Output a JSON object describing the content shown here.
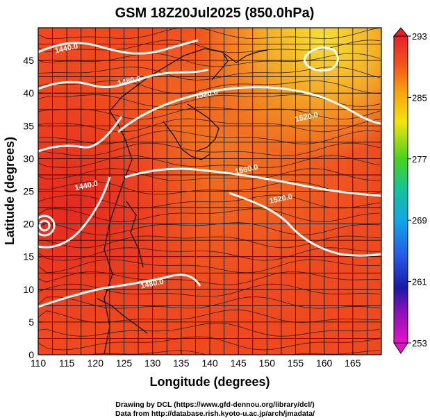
{
  "title": "GSM 18Z20Jul2025 (850.0hPa)",
  "chart_data": {
    "type": "heatmap",
    "title": "GSM 18Z20Jul2025 (850.0hPa)",
    "xlabel": "Longitude (degrees)",
    "ylabel": "Latitude  (degrees)",
    "xlim": [
      110,
      170
    ],
    "ylim": [
      0,
      50
    ],
    "xticks": [
      "110",
      "115",
      "120",
      "125",
      "130",
      "135",
      "140",
      "145",
      "150",
      "155",
      "160",
      "165"
    ],
    "yticks": [
      "0",
      "5",
      "10",
      "15",
      "20",
      "25",
      "30",
      "35",
      "40",
      "45"
    ],
    "colorbar": {
      "min": 253,
      "max": 293,
      "ticks": [
        "293",
        "285",
        "277",
        "269",
        "261",
        "253"
      ]
    },
    "contours": [
      {
        "label": "1440.0",
        "lon": 115.0,
        "lat": 46.5
      },
      {
        "label": "1480.0",
        "lon": 126.0,
        "lat": 41.5
      },
      {
        "label": "1520.0",
        "lon": 139.5,
        "lat": 39.5
      },
      {
        "label": "1520.0",
        "lon": 157.0,
        "lat": 36.0
      },
      {
        "label": "1560.0",
        "lon": 146.5,
        "lat": 28.0
      },
      {
        "label": "1520.0",
        "lon": 152.5,
        "lat": 23.5
      },
      {
        "label": "1440.0",
        "lon": 118.5,
        "lat": 25.5
      },
      {
        "label": "1480.0",
        "lon": 130.0,
        "lat": 10.5
      }
    ]
  },
  "footer": {
    "line1": "Drawing by DCL (https://www.gfd-dennou.org/library/dcl/)",
    "line2": "Data from http://database.rish.kyoto-u.ac.jp/arch/jmadata/"
  }
}
